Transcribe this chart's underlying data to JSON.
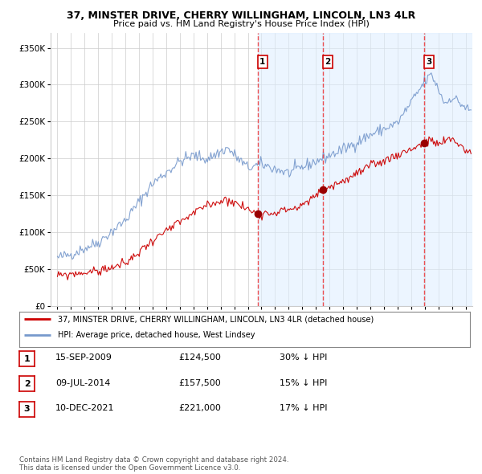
{
  "title": "37, MINSTER DRIVE, CHERRY WILLINGHAM, LINCOLN, LN3 4LR",
  "subtitle": "Price paid vs. HM Land Registry's House Price Index (HPI)",
  "background_color": "#ffffff",
  "plot_bg_color": "#ffffff",
  "grid_color": "#cccccc",
  "hpi_color": "#7799cc",
  "price_color": "#cc0000",
  "sale_marker_color": "#990000",
  "sale_vline_color": "#ee3333",
  "shade_color": "#ddeeff",
  "shade_alpha": 0.55,
  "ylim": [
    0,
    370000
  ],
  "yticks": [
    0,
    50000,
    100000,
    150000,
    200000,
    250000,
    300000,
    350000
  ],
  "ytick_labels": [
    "£0",
    "£50K",
    "£100K",
    "£150K",
    "£200K",
    "£250K",
    "£300K",
    "£350K"
  ],
  "sale_events": [
    {
      "date_num": 2009.71,
      "price": 124500,
      "label": "1"
    },
    {
      "date_num": 2014.52,
      "price": 157500,
      "label": "2"
    },
    {
      "date_num": 2021.94,
      "price": 221000,
      "label": "3"
    }
  ],
  "legend_entries": [
    {
      "label": "37, MINSTER DRIVE, CHERRY WILLINGHAM, LINCOLN, LN3 4LR (detached house)",
      "color": "#cc0000"
    },
    {
      "label": "HPI: Average price, detached house, West Lindsey",
      "color": "#7799cc"
    }
  ],
  "table_rows": [
    {
      "num": "1",
      "date": "15-SEP-2009",
      "price": "£124,500",
      "change": "30% ↓ HPI"
    },
    {
      "num": "2",
      "date": "09-JUL-2014",
      "price": "£157,500",
      "change": "15% ↓ HPI"
    },
    {
      "num": "3",
      "date": "10-DEC-2021",
      "price": "£221,000",
      "change": "17% ↓ HPI"
    }
  ],
  "footer": "Contains HM Land Registry data © Crown copyright and database right 2024.\nThis data is licensed under the Open Government Licence v3.0.",
  "xlim": [
    1994.5,
    2025.5
  ]
}
